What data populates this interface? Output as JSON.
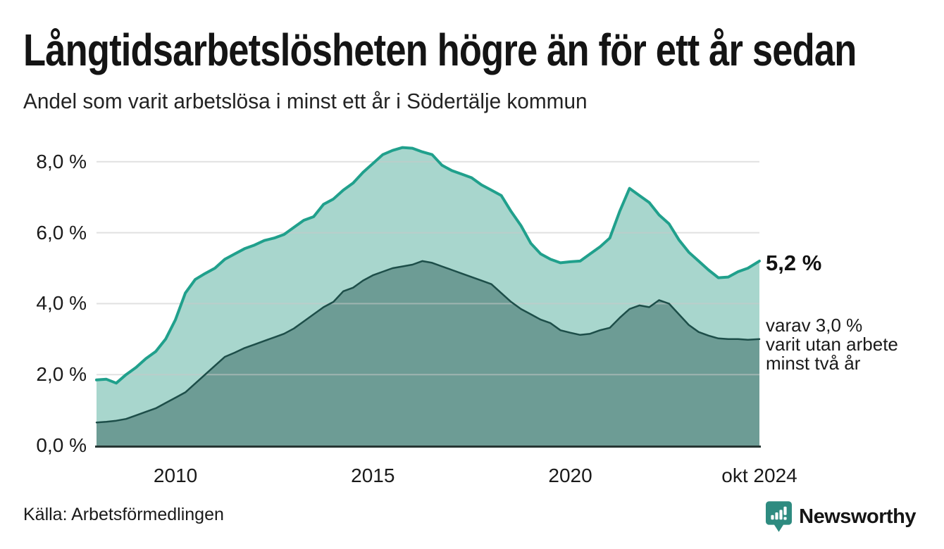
{
  "header": {
    "title": "Långtidsarbetslösheten högre än för ett år sedan",
    "subtitle": "Andel som varit arbetslösa i minst ett år i Södertälje kommun"
  },
  "annotations": {
    "latest_value": "5,2 %",
    "note_lines": [
      "varav 3,0 %",
      "varit utan arbete",
      "minst två år"
    ]
  },
  "footer": {
    "source": "Källa: Arbetsförmedlingen",
    "brand": "Newsworthy",
    "brand_color": "#2e8b80"
  },
  "colors": {
    "line_one_year": "#20a08c",
    "fill_one_year": "#a8d6cd",
    "line_two_years": "#1d4e49",
    "fill_two_years": "#6d9c95",
    "axis": "#263533",
    "gridline": "#c9c9c9",
    "text": "#1a1a1a"
  },
  "chart_data": {
    "type": "area",
    "title": "Långtidsarbetslösheten högre än för ett år sedan",
    "subtitle": "Andel som varit arbetslösa i minst ett år i Södertälje kommun",
    "xlabel": "",
    "ylabel": "",
    "grid": "horizontal",
    "ylim": [
      0,
      8.4
    ],
    "xlim": [
      2008,
      2024.79
    ],
    "x": [
      2008,
      2008.25,
      2008.5,
      2008.75,
      2009,
      2009.25,
      2009.5,
      2009.75,
      2010,
      2010.25,
      2010.5,
      2010.75,
      2011,
      2011.25,
      2011.5,
      2011.75,
      2012,
      2012.25,
      2012.5,
      2012.75,
      2013,
      2013.25,
      2013.5,
      2013.75,
      2014,
      2014.25,
      2014.5,
      2014.75,
      2015,
      2015.25,
      2015.5,
      2015.75,
      2016,
      2016.25,
      2016.5,
      2016.75,
      2017,
      2017.25,
      2017.5,
      2017.75,
      2018,
      2018.25,
      2018.5,
      2018.75,
      2019,
      2019.25,
      2019.5,
      2019.75,
      2020,
      2020.25,
      2020.5,
      2020.75,
      2021,
      2021.25,
      2021.5,
      2021.75,
      2022,
      2022.25,
      2022.5,
      2022.75,
      2023,
      2023.25,
      2023.5,
      2023.75,
      2024,
      2024.25,
      2024.5,
      2024.79
    ],
    "series": [
      {
        "name": "Andel som varit arbetslösa i minst ett år",
        "latest_label": "5,2 %",
        "color": "#20a08c",
        "fill": "#a8d6cd",
        "stroke_width": 4,
        "values": [
          1.85,
          1.87,
          1.76,
          2.0,
          2.2,
          2.45,
          2.65,
          3.0,
          3.55,
          4.3,
          4.68,
          4.85,
          5.0,
          5.25,
          5.4,
          5.55,
          5.65,
          5.78,
          5.85,
          5.95,
          6.15,
          6.35,
          6.45,
          6.8,
          6.95,
          7.2,
          7.4,
          7.7,
          7.95,
          8.2,
          8.32,
          8.4,
          8.38,
          8.28,
          8.2,
          7.9,
          7.75,
          7.65,
          7.55,
          7.35,
          7.2,
          7.05,
          6.6,
          6.2,
          5.7,
          5.4,
          5.25,
          5.15,
          5.18,
          5.2,
          5.4,
          5.6,
          5.85,
          6.6,
          7.25,
          7.05,
          6.85,
          6.5,
          6.25,
          5.8,
          5.45,
          5.2,
          4.95,
          4.73,
          4.75,
          4.9,
          5.0,
          5.2
        ]
      },
      {
        "name": "varav varit utan arbete minst två år",
        "latest_label": "3,0 %",
        "color": "#1d4e49",
        "fill": "#6d9c95",
        "stroke_width": 2.5,
        "values": [
          0.65,
          0.67,
          0.7,
          0.75,
          0.85,
          0.95,
          1.05,
          1.2,
          1.35,
          1.5,
          1.75,
          2.0,
          2.25,
          2.5,
          2.62,
          2.75,
          2.85,
          2.95,
          3.05,
          3.15,
          3.3,
          3.5,
          3.7,
          3.9,
          4.05,
          4.35,
          4.45,
          4.65,
          4.8,
          4.9,
          5.0,
          5.05,
          5.1,
          5.2,
          5.15,
          5.05,
          4.95,
          4.85,
          4.75,
          4.65,
          4.55,
          4.3,
          4.05,
          3.85,
          3.7,
          3.55,
          3.45,
          3.25,
          3.18,
          3.12,
          3.15,
          3.25,
          3.32,
          3.6,
          3.85,
          3.95,
          3.9,
          4.1,
          4.0,
          3.7,
          3.4,
          3.2,
          3.1,
          3.02,
          3.0,
          3.0,
          2.98,
          3.0
        ]
      }
    ],
    "y_ticks": [
      {
        "value": 0,
        "label": "0,0 %"
      },
      {
        "value": 2,
        "label": "2,0 %"
      },
      {
        "value": 4,
        "label": "4,0 %"
      },
      {
        "value": 6,
        "label": "6,0 %"
      },
      {
        "value": 8,
        "label": "8,0 %"
      }
    ],
    "x_ticks": [
      {
        "value": 2010,
        "label": "2010"
      },
      {
        "value": 2015,
        "label": "2015"
      },
      {
        "value": 2020,
        "label": "2020"
      },
      {
        "value": 2024.79,
        "label": "okt 2024"
      }
    ]
  }
}
